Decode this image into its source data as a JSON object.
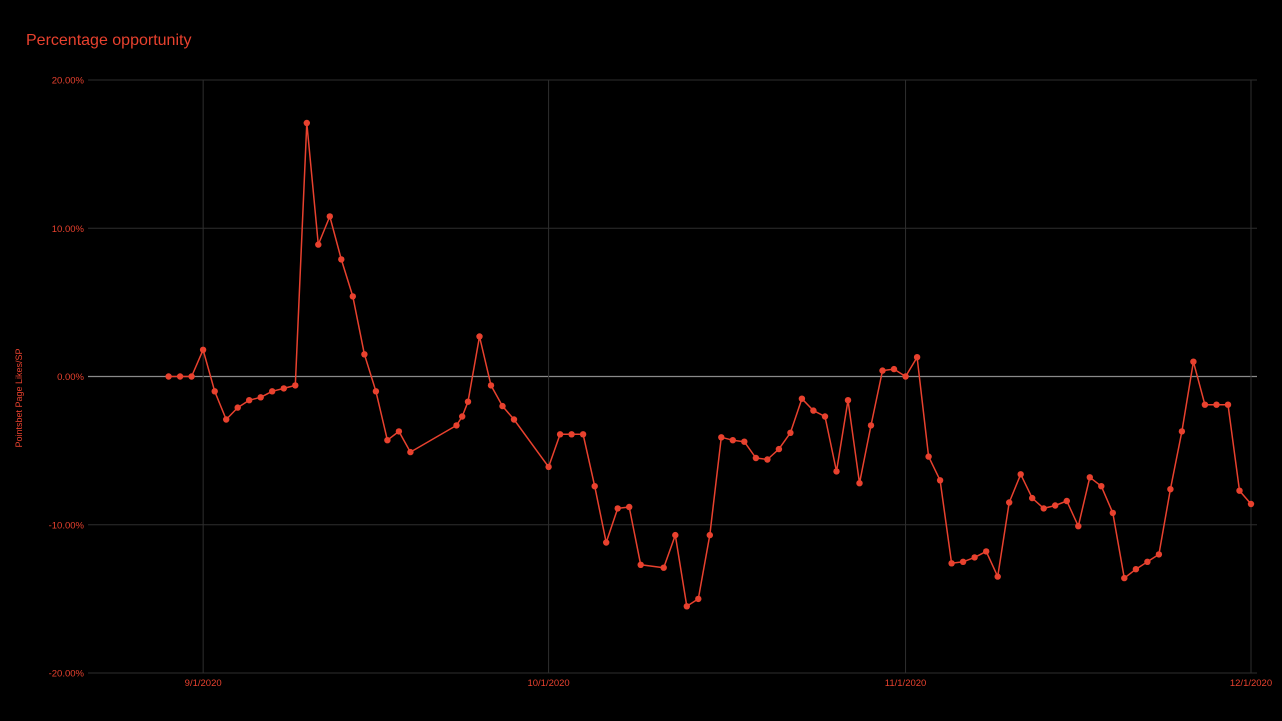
{
  "chart_data": {
    "type": "line",
    "title": "Percentage opportunity",
    "xlabel": "",
    "ylabel": "Pointsbet Page Likes/SP",
    "ylim": [
      -20,
      20
    ],
    "yticks": [
      "20.00%",
      "10.00%",
      "0.00%",
      "-10.00%",
      "-20.00%"
    ],
    "ytick_values": [
      20,
      10,
      0,
      -10,
      -20
    ],
    "xlim": [
      "2020-08-22",
      "2020-12-01"
    ],
    "xticks": [
      "9/1/2020",
      "10/1/2020",
      "11/1/2020",
      "12/1/2020"
    ],
    "xtick_dates": [
      "2020-09-01",
      "2020-10-01",
      "2020-11-01",
      "2020-12-01"
    ],
    "grid": true,
    "legend": "none",
    "colors": {
      "series": "#e8412e",
      "background": "#000000",
      "grid": "#2e2e2e",
      "zero_line": "#8a8a8a",
      "text": "#e8412e"
    },
    "series": [
      {
        "values": [
          {
            "x": "2020-08-29",
            "y": 0.0
          },
          {
            "x": "2020-08-30",
            "y": 0.0
          },
          {
            "x": "2020-08-31",
            "y": 0.0
          },
          {
            "x": "2020-09-01",
            "y": 1.8
          },
          {
            "x": "2020-09-02",
            "y": -1.0
          },
          {
            "x": "2020-09-03",
            "y": -2.9
          },
          {
            "x": "2020-09-04",
            "y": -2.1
          },
          {
            "x": "2020-09-05",
            "y": -1.6
          },
          {
            "x": "2020-09-06",
            "y": -1.4
          },
          {
            "x": "2020-09-07",
            "y": -1.0
          },
          {
            "x": "2020-09-08",
            "y": -0.8
          },
          {
            "x": "2020-09-09",
            "y": -0.6
          },
          {
            "x": "2020-09-10",
            "y": 17.1
          },
          {
            "x": "2020-09-11",
            "y": 8.9
          },
          {
            "x": "2020-09-12",
            "y": 10.8
          },
          {
            "x": "2020-09-13",
            "y": 7.9
          },
          {
            "x": "2020-09-14",
            "y": 5.4
          },
          {
            "x": "2020-09-15",
            "y": 1.5
          },
          {
            "x": "2020-09-16",
            "y": -1.0
          },
          {
            "x": "2020-09-17",
            "y": -4.3
          },
          {
            "x": "2020-09-18",
            "y": -3.7
          },
          {
            "x": "2020-09-19",
            "y": -5.1
          },
          {
            "x": "2020-09-23",
            "y": -3.3
          },
          {
            "x": "2020-09-23T12:00",
            "y": -2.7
          },
          {
            "x": "2020-09-24",
            "y": -1.7
          },
          {
            "x": "2020-09-25",
            "y": 2.7
          },
          {
            "x": "2020-09-26",
            "y": -0.6
          },
          {
            "x": "2020-09-27",
            "y": -2.0
          },
          {
            "x": "2020-09-28",
            "y": -2.9
          },
          {
            "x": "2020-10-01",
            "y": -6.1
          },
          {
            "x": "2020-10-02",
            "y": -3.9
          },
          {
            "x": "2020-10-03",
            "y": -3.9
          },
          {
            "x": "2020-10-04",
            "y": -3.9
          },
          {
            "x": "2020-10-05",
            "y": -7.4
          },
          {
            "x": "2020-10-06",
            "y": -11.2
          },
          {
            "x": "2020-10-07",
            "y": -8.9
          },
          {
            "x": "2020-10-08",
            "y": -8.8
          },
          {
            "x": "2020-10-09",
            "y": -12.7
          },
          {
            "x": "2020-10-11",
            "y": -12.9
          },
          {
            "x": "2020-10-12",
            "y": -10.7
          },
          {
            "x": "2020-10-13",
            "y": -15.5
          },
          {
            "x": "2020-10-14",
            "y": -15.0
          },
          {
            "x": "2020-10-15",
            "y": -10.7
          },
          {
            "x": "2020-10-16",
            "y": -4.1
          },
          {
            "x": "2020-10-17",
            "y": -4.3
          },
          {
            "x": "2020-10-18",
            "y": -4.4
          },
          {
            "x": "2020-10-19",
            "y": -5.5
          },
          {
            "x": "2020-10-20",
            "y": -5.6
          },
          {
            "x": "2020-10-21",
            "y": -4.9
          },
          {
            "x": "2020-10-22",
            "y": -3.8
          },
          {
            "x": "2020-10-23",
            "y": -1.5
          },
          {
            "x": "2020-10-24",
            "y": -2.3
          },
          {
            "x": "2020-10-25",
            "y": -2.7
          },
          {
            "x": "2020-10-26",
            "y": -6.4
          },
          {
            "x": "2020-10-27",
            "y": -1.6
          },
          {
            "x": "2020-10-28",
            "y": -7.2
          },
          {
            "x": "2020-10-29",
            "y": -3.3
          },
          {
            "x": "2020-10-30",
            "y": 0.4
          },
          {
            "x": "2020-10-31",
            "y": 0.5
          },
          {
            "x": "2020-11-01",
            "y": 0.0
          },
          {
            "x": "2020-11-02",
            "y": 1.3
          },
          {
            "x": "2020-11-03",
            "y": -5.4
          },
          {
            "x": "2020-11-04",
            "y": -7.0
          },
          {
            "x": "2020-11-05",
            "y": -12.6
          },
          {
            "x": "2020-11-06",
            "y": -12.5
          },
          {
            "x": "2020-11-07",
            "y": -12.2
          },
          {
            "x": "2020-11-08",
            "y": -11.8
          },
          {
            "x": "2020-11-09",
            "y": -13.5
          },
          {
            "x": "2020-11-10",
            "y": -8.5
          },
          {
            "x": "2020-11-11",
            "y": -6.6
          },
          {
            "x": "2020-11-12",
            "y": -8.2
          },
          {
            "x": "2020-11-13",
            "y": -8.9
          },
          {
            "x": "2020-11-14",
            "y": -8.7
          },
          {
            "x": "2020-11-15",
            "y": -8.4
          },
          {
            "x": "2020-11-16",
            "y": -10.1
          },
          {
            "x": "2020-11-17",
            "y": -6.8
          },
          {
            "x": "2020-11-18",
            "y": -7.4
          },
          {
            "x": "2020-11-19",
            "y": -9.2
          },
          {
            "x": "2020-11-20",
            "y": -13.6
          },
          {
            "x": "2020-11-21",
            "y": -13.0
          },
          {
            "x": "2020-11-22",
            "y": -12.5
          },
          {
            "x": "2020-11-23",
            "y": -12.0
          },
          {
            "x": "2020-11-24",
            "y": -7.6
          },
          {
            "x": "2020-11-25",
            "y": -3.7
          },
          {
            "x": "2020-11-26",
            "y": 1.0
          },
          {
            "x": "2020-11-27",
            "y": -1.9
          },
          {
            "x": "2020-11-28",
            "y": -1.9
          },
          {
            "x": "2020-11-29",
            "y": -1.9
          },
          {
            "x": "2020-11-30",
            "y": -7.7
          },
          {
            "x": "2020-12-01",
            "y": -8.6
          }
        ]
      }
    ]
  }
}
